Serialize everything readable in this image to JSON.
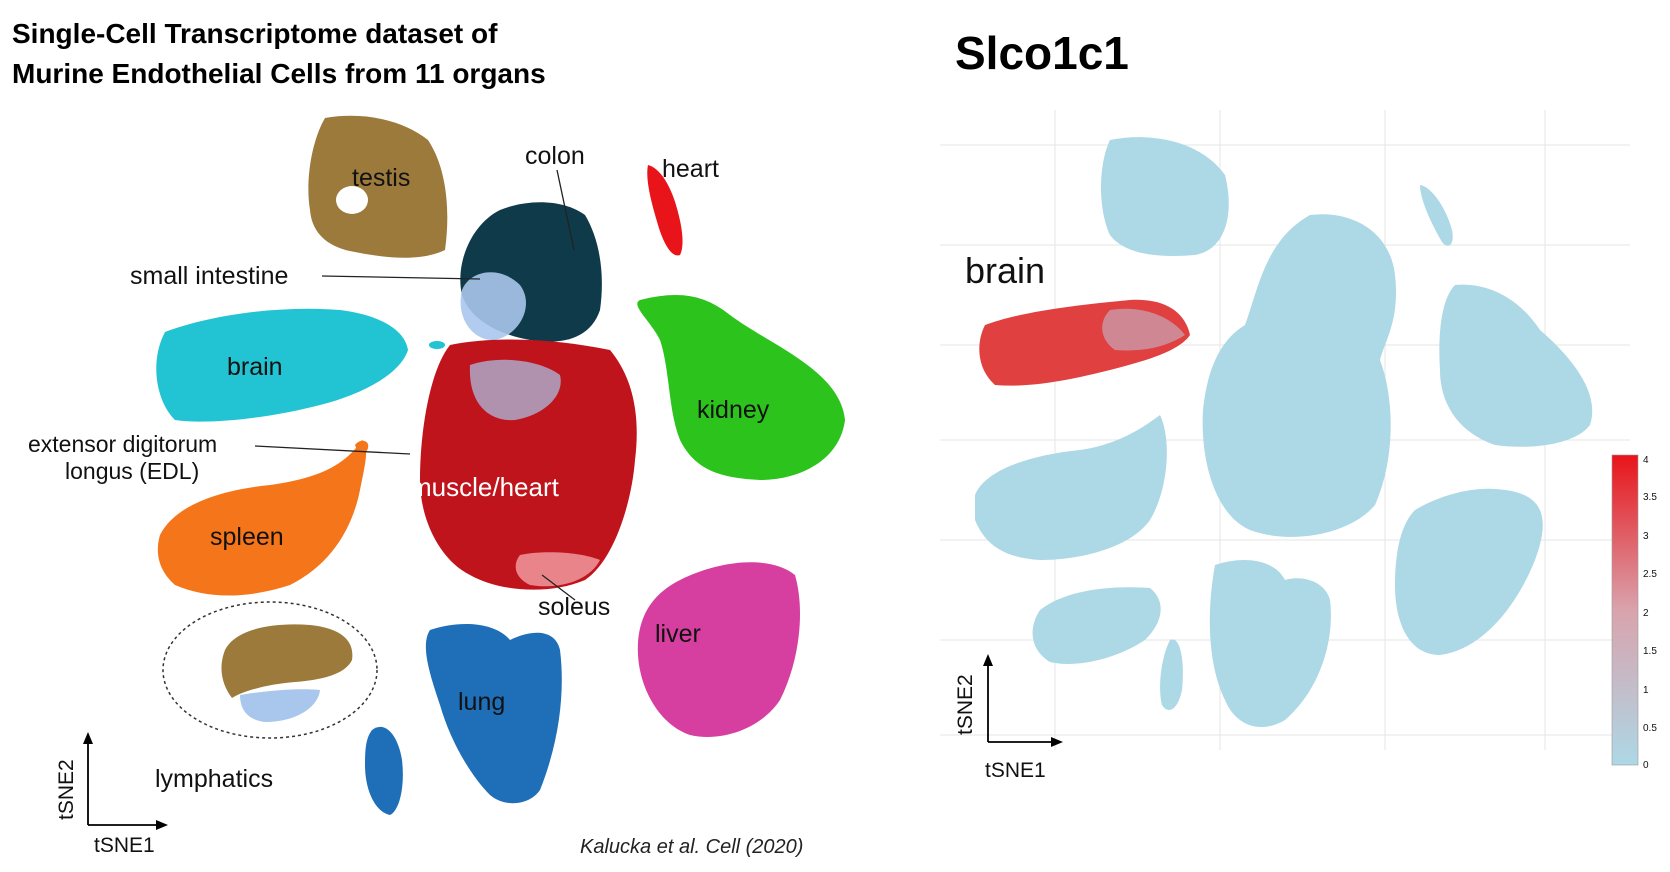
{
  "left_panel": {
    "title_line1": "Single-Cell Transcriptome dataset of",
    "title_line2": "Murine Endothelial Cells from 11 organs",
    "clusters": {
      "testis": "testis",
      "colon": "colon",
      "heart": "heart",
      "small_intestine": "small intestine",
      "brain": "brain",
      "kidney": "kidney",
      "edl_line1": "extensor digitorum",
      "edl_line2": "longus (EDL)",
      "muscle_heart": "muscle/heart",
      "spleen": "spleen",
      "soleus": "soleus",
      "liver": "liver",
      "lung": "lung",
      "lymphatics": "lymphatics"
    },
    "axis_x": "tSNE1",
    "axis_y": "tSNE2",
    "citation": "Kalucka et al. Cell (2020)",
    "colors": {
      "testis": "#9b7a3c",
      "colon": "#0f3a4a",
      "heart": "#e8141a",
      "small_intestine": "#a9c6ec",
      "brain": "#22c3d2",
      "kidney": "#2cc41c",
      "muscle": "#c0141c",
      "spleen": "#f5761a",
      "liver": "#d63fa0",
      "lung": "#1f6fb8"
    }
  },
  "right_panel": {
    "gene": "Slco1c1",
    "highlight_label": "brain",
    "axis_x": "tSNE1",
    "axis_y": "tSNE2",
    "colorbar": {
      "ticks": [
        "4",
        "3.5",
        "3",
        "2.5",
        "2",
        "1.5",
        "1",
        "0.5",
        "0"
      ],
      "low_color": "#add8e6",
      "high_color": "#e8141a"
    },
    "base_color": "#add8e6",
    "expressed_color": "#e04040"
  }
}
